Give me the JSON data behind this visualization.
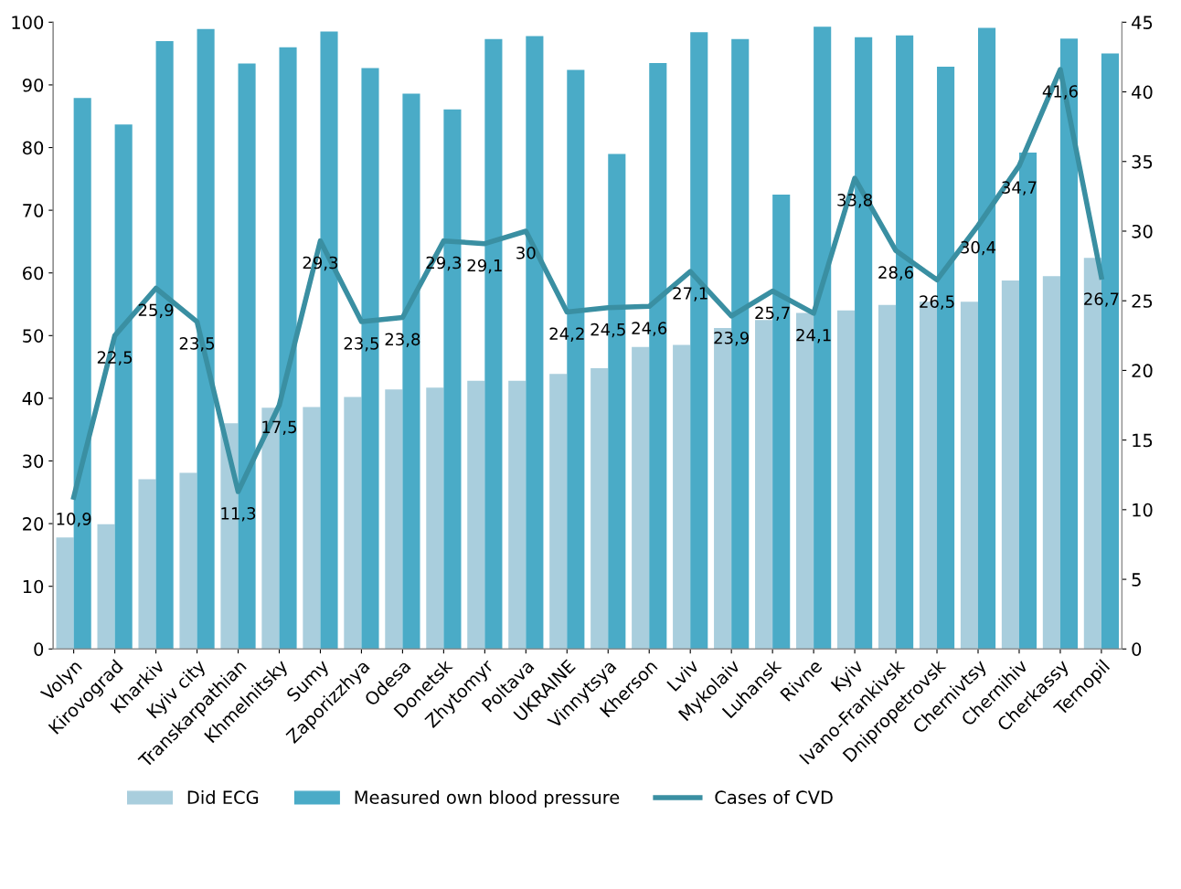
{
  "chart_data": {
    "type": "bar",
    "categories": [
      "Volyn",
      "Kirovograd",
      "Kharkiv",
      "Kyiv city",
      "Transkarpathian",
      "Khmelnitsky",
      "Sumy",
      "Zaporizzhya",
      "Odesa",
      "Donetsk",
      "Zhytomyr",
      "Poltava",
      "UKRAINE",
      "Vinnytsya",
      "Kherson",
      "Lviv",
      "Mykolaiv",
      "Luhansk",
      "Rivne",
      "Kyiv",
      "Ivano-Frankivsk",
      "Dnipropetrovsk",
      "Chernivtsy",
      "Chernihiv",
      "Cherkassy",
      "Ternopil"
    ],
    "series": [
      {
        "name": "Did ECG",
        "color": "#a9cedd",
        "values": [
          17.8,
          19.9,
          27.1,
          28.1,
          36.0,
          38.5,
          38.6,
          40.2,
          41.4,
          41.7,
          42.8,
          42.8,
          43.9,
          44.8,
          48.2,
          48.5,
          51.2,
          52.5,
          53.6,
          54.0,
          54.9,
          55.4,
          55.4,
          58.8,
          59.5,
          62.4
        ]
      },
      {
        "name": "Measured own blood pressure",
        "color": "#4aabc7",
        "values": [
          87.9,
          83.7,
          97.0,
          98.9,
          93.4,
          96.0,
          98.5,
          92.7,
          88.6,
          86.1,
          97.3,
          97.8,
          92.4,
          79.0,
          93.5,
          98.4,
          97.3,
          72.5,
          99.3,
          97.6,
          97.9,
          92.9,
          99.1,
          79.2,
          97.4,
          95.0
        ]
      },
      {
        "name": "Cases of CVD",
        "type": "line",
        "axis": "y2",
        "color": "#3a8fa2",
        "values": [
          10.9,
          22.5,
          25.9,
          23.5,
          11.3,
          17.5,
          29.3,
          23.5,
          23.8,
          29.3,
          29.1,
          30,
          24.2,
          24.5,
          24.6,
          27.1,
          23.9,
          25.7,
          24.1,
          33.8,
          28.6,
          26.5,
          30.4,
          34.7,
          41.6,
          26.7
        ],
        "value_labels": [
          "10,9",
          "22,5",
          "25,9",
          "23,5",
          "11,3",
          "17,5",
          "29,3",
          "23,5",
          "23,8",
          "29,3",
          "29,1",
          "30",
          "24,2",
          "24,5",
          "24,6",
          "27,1",
          "23,9",
          "25,7",
          "24,1",
          "33,8",
          "28,6",
          "26,5",
          "30,4",
          "34,7",
          "41,6",
          "26,7"
        ]
      }
    ],
    "ylim": [
      0,
      100
    ],
    "yticks": [
      0,
      10,
      20,
      30,
      40,
      50,
      60,
      70,
      80,
      90,
      100
    ],
    "y2lim": [
      0,
      45
    ],
    "y2ticks": [
      0,
      5,
      10,
      15,
      20,
      25,
      30,
      35,
      40,
      45
    ],
    "grid": false,
    "legend": "bottom",
    "marker": "none",
    "line_style": "solid"
  }
}
